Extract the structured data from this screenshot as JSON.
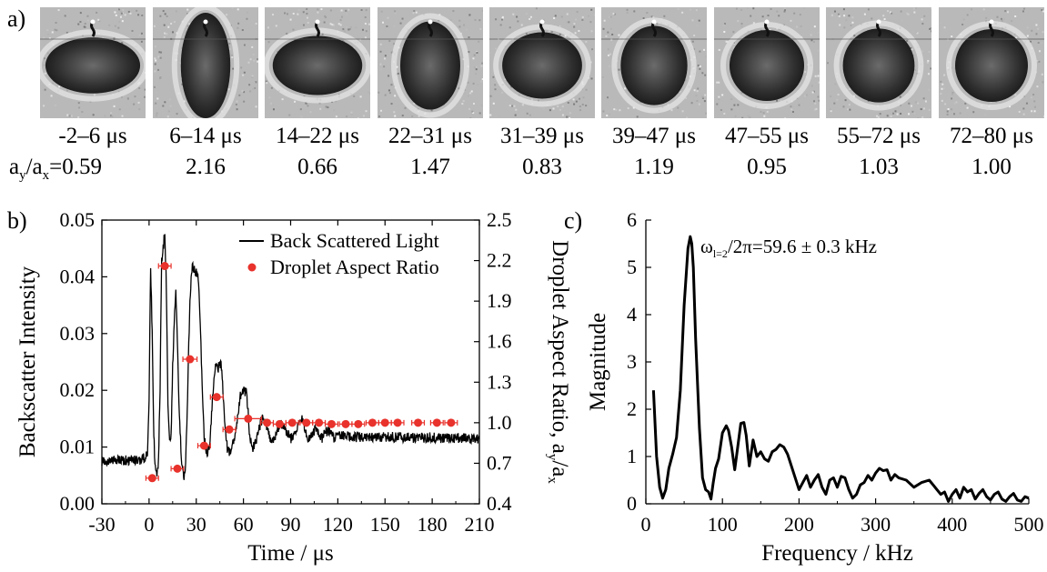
{
  "panel_labels": {
    "a": "a)",
    "b": "b)",
    "c": "c)"
  },
  "frames": [
    {
      "time": "-2–6 μs",
      "ratio": "0.59",
      "aspect": 0.59
    },
    {
      "time": "6–14 μs",
      "ratio": "2.16",
      "aspect": 2.16
    },
    {
      "time": "14–22 μs",
      "ratio": "0.66",
      "aspect": 0.66
    },
    {
      "time": "22–31 μs",
      "ratio": "1.47",
      "aspect": 1.47
    },
    {
      "time": "31–39 μs",
      "ratio": "0.83",
      "aspect": 0.83
    },
    {
      "time": "39–47 μs",
      "ratio": "1.19",
      "aspect": 1.19
    },
    {
      "time": "47–55 μs",
      "ratio": "0.95",
      "aspect": 0.95
    },
    {
      "time": "55–72 μs",
      "ratio": "1.03",
      "aspect": 1.03
    },
    {
      "time": "72–80 μs",
      "ratio": "1.00",
      "aspect": 1.0
    }
  ],
  "first_ratio_prefix": {
    "a": "a",
    "y": "y",
    "slash": "/a",
    "x": "x",
    "eq": "="
  },
  "chart_data": [
    {
      "type": "line",
      "panel": "b",
      "xlabel": "Time / μs",
      "ylabel": "Backscatter Intensity",
      "y2label": "Droplet Aspect Ratio, a",
      "y2label_sub1": "y",
      "y2label_mid": "/a",
      "y2label_sub2": "x",
      "xlim": [
        -30,
        210
      ],
      "ylim": [
        0,
        0.05
      ],
      "y2lim": [
        0.4,
        2.5
      ],
      "xticks": [
        "-30",
        "0",
        "30",
        "60",
        "90",
        "120",
        "150",
        "180",
        "210"
      ],
      "yticks": [
        "0.00",
        "0.01",
        "0.02",
        "0.03",
        "0.04",
        "0.05"
      ],
      "y2ticks": [
        "0.4",
        "0.7",
        "1.0",
        "1.3",
        "1.6",
        "1.9",
        "2.2",
        "2.5"
      ],
      "legend_position": "top-right",
      "series": [
        {
          "name": "Back Scattered Light",
          "color": "#000000",
          "axis": "left",
          "style": "line",
          "x": [
            -30,
            -5,
            -1,
            0,
            1,
            2,
            3,
            4,
            5,
            6,
            7,
            8,
            9,
            10,
            11,
            12,
            13,
            14,
            15,
            16,
            17,
            18,
            19,
            20,
            21,
            22,
            23,
            24,
            25,
            26,
            27,
            28,
            29,
            30,
            31,
            32,
            33,
            34,
            35,
            36,
            37,
            38,
            39,
            40,
            41,
            42,
            43,
            44,
            45,
            46,
            47,
            48,
            49,
            50,
            51,
            52,
            54,
            56,
            58,
            60,
            62,
            63,
            64,
            65,
            66,
            68,
            70,
            72,
            74,
            76,
            78,
            80,
            82,
            84,
            86,
            88,
            90,
            92,
            94,
            96,
            98,
            100,
            102,
            104,
            106,
            108,
            110,
            112,
            114,
            116,
            118,
            120,
            130,
            140,
            150,
            160,
            170,
            180,
            190,
            200,
            210
          ],
          "y": [
            0.0075,
            0.0078,
            0.0085,
            0.019,
            0.042,
            0.03,
            0.012,
            0.006,
            0.0045,
            0.008,
            0.02,
            0.043,
            0.045,
            0.048,
            0.038,
            0.018,
            0.011,
            0.012,
            0.024,
            0.032,
            0.037,
            0.029,
            0.018,
            0.011,
            0.006,
            0.0045,
            0.006,
            0.013,
            0.025,
            0.036,
            0.041,
            0.042,
            0.041,
            0.041,
            0.04,
            0.036,
            0.028,
            0.018,
            0.012,
            0.0095,
            0.009,
            0.0095,
            0.012,
            0.017,
            0.021,
            0.024,
            0.025,
            0.024,
            0.025,
            0.024,
            0.02,
            0.015,
            0.011,
            0.0095,
            0.009,
            0.0095,
            0.011,
            0.015,
            0.019,
            0.02,
            0.0195,
            0.016,
            0.012,
            0.0105,
            0.01,
            0.011,
            0.0135,
            0.015,
            0.0145,
            0.0125,
            0.011,
            0.0115,
            0.0135,
            0.014,
            0.0135,
            0.0125,
            0.0115,
            0.012,
            0.0135,
            0.0155,
            0.0145,
            0.012,
            0.0115,
            0.012,
            0.0135,
            0.0125,
            0.0115,
            0.0125,
            0.013,
            0.012,
            0.0115,
            0.012,
            0.0118,
            0.0116,
            0.0118,
            0.0117,
            0.0116,
            0.0117,
            0.0115,
            0.0116,
            0.0115
          ]
        },
        {
          "name": "Droplet Aspect Ratio",
          "color": "#e8322b",
          "axis": "right",
          "style": "scatter",
          "x": [
            2,
            10,
            18,
            26,
            35,
            43,
            51,
            63,
            75,
            83,
            91,
            100,
            108,
            116,
            125,
            133,
            142,
            150,
            158,
            171,
            183,
            192
          ],
          "y": [
            0.59,
            2.16,
            0.66,
            1.47,
            0.83,
            1.19,
            0.95,
            1.03,
            1.0,
            0.99,
            1.0,
            1.0,
            1.0,
            0.99,
            0.99,
            0.99,
            1.0,
            1.0,
            1.0,
            1.0,
            1.0,
            1.0
          ],
          "xerr": [
            4,
            4,
            4,
            4.5,
            4,
            4,
            4,
            8.5,
            4,
            4,
            4,
            4,
            4,
            4,
            4,
            4,
            4,
            4,
            4,
            4,
            4,
            4
          ]
        }
      ]
    },
    {
      "type": "line",
      "panel": "c",
      "xlabel": "Frequency / kHz",
      "ylabel": "Magnitude",
      "annotation": {
        "omega": "ω",
        "sub": "l=2",
        "text": "/2π=59.6 ± 0.3 kHz"
      },
      "xlim": [
        0,
        500
      ],
      "ylim": [
        0,
        6
      ],
      "xticks": [
        "0",
        "100",
        "200",
        "300",
        "400",
        "500"
      ],
      "yticks": [
        "0",
        "1",
        "2",
        "3",
        "4",
        "5",
        "6"
      ],
      "series": [
        {
          "color": "#000000",
          "x": [
            10,
            14,
            18,
            22,
            26,
            30,
            35,
            40,
            45,
            50,
            55,
            58,
            60,
            62,
            65,
            70,
            74,
            78,
            82,
            85,
            88,
            91,
            95,
            100,
            105,
            108,
            112,
            116,
            120,
            124,
            128,
            131,
            135,
            140,
            145,
            150,
            155,
            160,
            165,
            170,
            175,
            180,
            185,
            190,
            195,
            200,
            205,
            210,
            215,
            220,
            225,
            230,
            235,
            240,
            245,
            250,
            255,
            260,
            265,
            270,
            275,
            280,
            285,
            290,
            295,
            300,
            305,
            310,
            315,
            320,
            325,
            330,
            340,
            350,
            360,
            370,
            375,
            380,
            385,
            390,
            395,
            400,
            405,
            410,
            415,
            420,
            425,
            430,
            435,
            440,
            445,
            450,
            455,
            460,
            465,
            470,
            475,
            480,
            485,
            490,
            495,
            500
          ],
          "y": [
            2.4,
            1.0,
            0.35,
            0.12,
            0.3,
            0.75,
            1.05,
            1.4,
            2.4,
            4.2,
            5.4,
            5.65,
            5.5,
            5.0,
            3.5,
            1.6,
            0.55,
            0.3,
            0.25,
            0.1,
            0.45,
            0.75,
            0.95,
            1.5,
            1.65,
            1.55,
            1.2,
            0.72,
            1.2,
            1.7,
            1.72,
            1.45,
            0.8,
            1.35,
            1.0,
            1.1,
            0.95,
            0.9,
            1.1,
            1.15,
            1.25,
            1.2,
            1.05,
            0.8,
            0.55,
            0.3,
            0.45,
            0.6,
            0.35,
            0.5,
            0.62,
            0.35,
            0.2,
            0.5,
            0.55,
            0.35,
            0.58,
            0.55,
            0.3,
            0.12,
            0.2,
            0.4,
            0.45,
            0.6,
            0.5,
            0.65,
            0.75,
            0.7,
            0.72,
            0.5,
            0.62,
            0.55,
            0.5,
            0.35,
            0.45,
            0.5,
            0.4,
            0.3,
            0.2,
            0.25,
            0.05,
            0.2,
            0.3,
            0.12,
            0.35,
            0.25,
            0.3,
            0.1,
            0.22,
            0.3,
            0.15,
            0.08,
            0.2,
            0.25,
            0.1,
            0.05,
            0.15,
            0.22,
            0.08,
            0.05,
            0.15,
            0.12
          ]
        }
      ]
    }
  ]
}
